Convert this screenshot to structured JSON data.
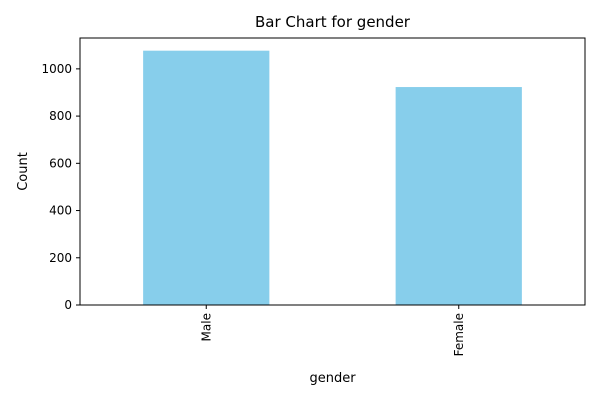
{
  "chart_data": {
    "type": "bar",
    "title": "Bar Chart for gender",
    "xlabel": "gender",
    "ylabel": "Count",
    "categories": [
      "Male",
      "Female"
    ],
    "values": [
      1077,
      923
    ],
    "ylim": [
      0,
      1130.7
    ],
    "yticks": [
      0,
      200,
      400,
      600,
      800,
      1000
    ],
    "bar_color": "#87CEEB",
    "grid": false,
    "legend": "none"
  }
}
